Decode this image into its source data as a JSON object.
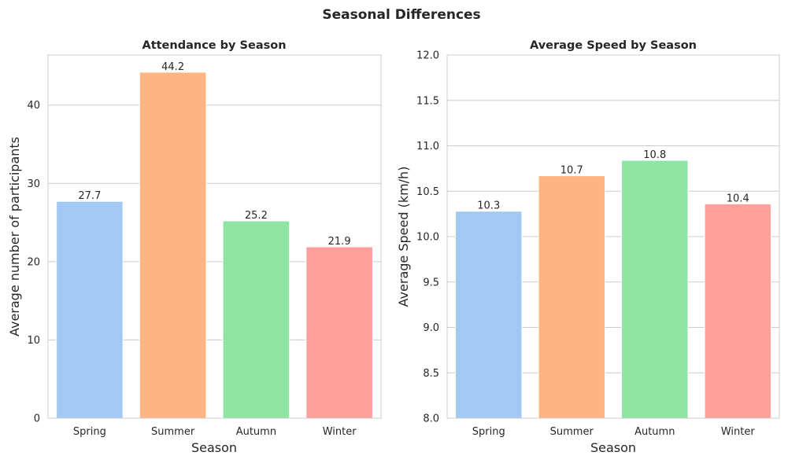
{
  "figure": {
    "title": "Seasonal Differences"
  },
  "chart_data": [
    {
      "type": "bar",
      "title": "Attendance by Season",
      "xlabel": "Season",
      "ylabel": "Average number of participants",
      "categories": [
        "Spring",
        "Summer",
        "Autumn",
        "Winter"
      ],
      "values": [
        27.7,
        44.2,
        25.2,
        21.9
      ],
      "value_labels": [
        "27.7",
        "44.2",
        "25.2",
        "21.9"
      ],
      "ylim": [
        0,
        46.4
      ],
      "yticks": [
        0,
        10,
        20,
        30,
        40
      ],
      "ytick_labels": [
        "0",
        "10",
        "20",
        "30",
        "40"
      ],
      "colors": [
        "#a1c9f4",
        "#ffb482",
        "#8de5a1",
        "#ff9f9b"
      ],
      "grid": "horizontal"
    },
    {
      "type": "bar",
      "title": "Average Speed by Season",
      "xlabel": "Season",
      "ylabel": "Average Speed (km/h)",
      "categories": [
        "Spring",
        "Summer",
        "Autumn",
        "Winter"
      ],
      "values": [
        10.28,
        10.67,
        10.84,
        10.36
      ],
      "value_labels": [
        "10.3",
        "10.7",
        "10.8",
        "10.4"
      ],
      "ylim": [
        8,
        12
      ],
      "yticks": [
        8,
        8.5,
        9,
        9.5,
        10,
        10.5,
        11,
        11.5,
        12
      ],
      "ytick_labels": [
        "8.0",
        "8.5",
        "9.0",
        "9.5",
        "10.0",
        "10.5",
        "11.0",
        "11.5",
        "12.0"
      ],
      "colors": [
        "#a1c9f4",
        "#ffb482",
        "#8de5a1",
        "#ff9f9b"
      ],
      "grid": "horizontal"
    }
  ]
}
